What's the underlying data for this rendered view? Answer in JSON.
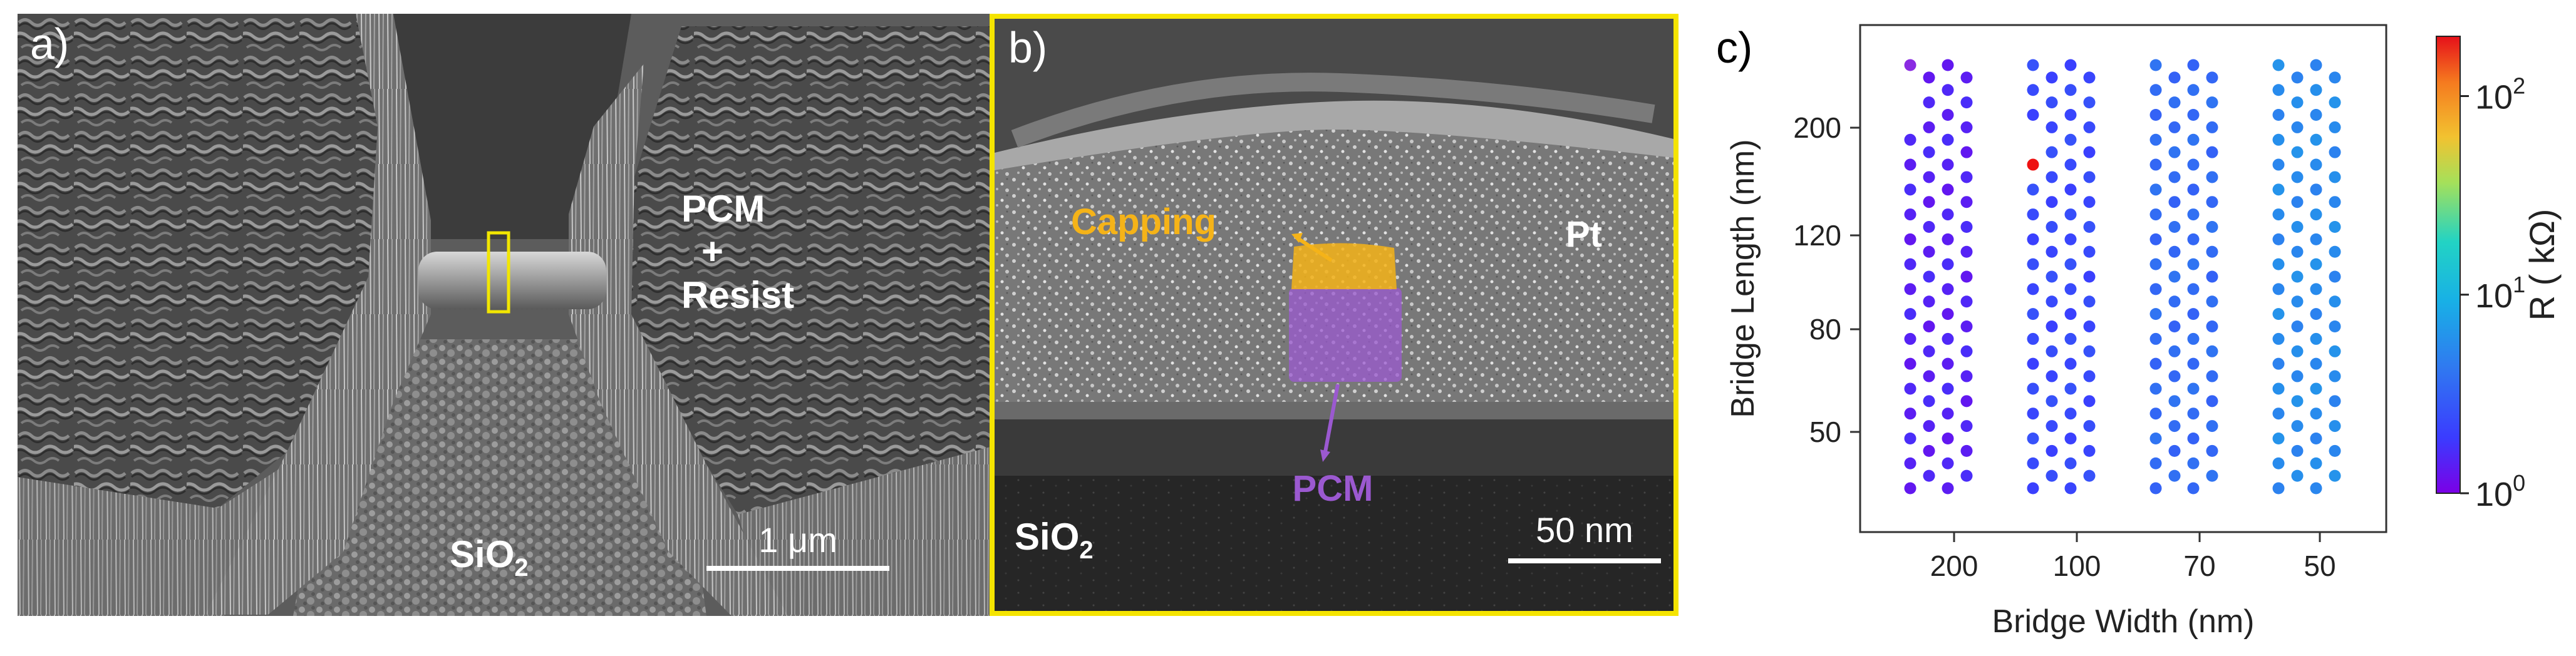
{
  "panel_a": {
    "label": "a)",
    "material_lines": [
      "PCM",
      "+",
      "Resist"
    ],
    "substrate_main": "SiO",
    "substrate_sub": "2",
    "scale_text": "1 μm",
    "colors": {
      "highlight_box": "#f2e600",
      "text": "#ffffff"
    }
  },
  "panel_b": {
    "label": "b)",
    "capping_label": "Capping",
    "pcm_label": "PCM",
    "pt_label": "Pt",
    "substrate_main": "SiO",
    "substrate_sub": "2",
    "scale_text": "50 nm",
    "colors": {
      "frame": "#f5e400",
      "capping": "#f5b318",
      "pcm": "#9b59d0",
      "text": "#ffffff"
    }
  },
  "panel_c": {
    "label": "c)",
    "chart_data": {
      "type": "scatter",
      "xlabel": "Bridge Width (nm)",
      "ylabel": "Bridge Length (nm)",
      "x_tick_labels": [
        "200",
        "100",
        "70",
        "50"
      ],
      "y_tick_labels": [
        "50",
        "80",
        "120",
        "200"
      ],
      "colorbar": {
        "label": "R ( kΩ)",
        "scale": "log",
        "range": [
          1,
          200
        ],
        "tick_labels": [
          {
            "base": "10",
            "exp": "0"
          },
          {
            "base": "10",
            "exp": "1"
          },
          {
            "base": "10",
            "exp": "2"
          }
        ]
      },
      "layout": {
        "groups_width_nm": [
          200,
          100,
          70,
          50
        ],
        "columns_per_group": 4,
        "rows_per_column": 18,
        "column_offsets": [
          0,
          1,
          0,
          1
        ]
      },
      "group_resistance_kohm": [
        1.45,
        2.3,
        3.6,
        5.5
      ],
      "outliers": [
        {
          "width_nm": 200,
          "column": 0,
          "row": 17,
          "resistance_kohm": 1.0,
          "color": "#8a2be2"
        },
        {
          "width_nm": 100,
          "column": 0,
          "row": 13,
          "resistance_kohm": 200,
          "color": "#ee1111"
        }
      ],
      "missing_points": [
        {
          "width_nm": 200,
          "column": 0,
          "row": 16
        },
        {
          "width_nm": 200,
          "column": 0,
          "row": 15
        },
        {
          "width_nm": 100,
          "column": 0,
          "row": 14
        }
      ]
    }
  }
}
